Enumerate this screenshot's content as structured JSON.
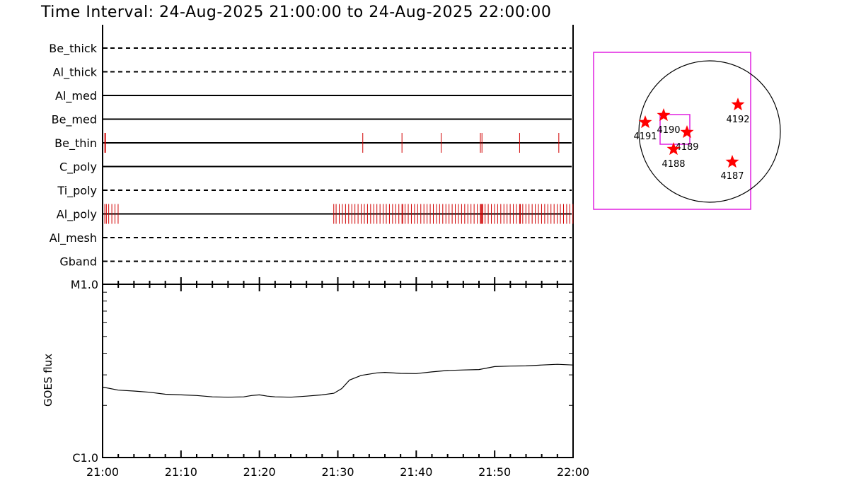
{
  "title": "Time Interval: 24-Aug-2025 21:00:00 to 24-Aug-2025 22:00:00",
  "chart_data": [
    {
      "type": "timeline",
      "x_range_minutes": [
        0,
        60
      ],
      "filters": [
        {
          "name": "Be_thick",
          "style": "dashed",
          "exposures_min": []
        },
        {
          "name": "Al_thick",
          "style": "dashed",
          "exposures_min": []
        },
        {
          "name": "Al_med",
          "style": "solid",
          "exposures_min": []
        },
        {
          "name": "Be_med",
          "style": "solid",
          "exposures_min": []
        },
        {
          "name": "Be_thin",
          "style": "solid",
          "exposures_min": [
            0.1,
            0.2,
            33.0,
            38.0,
            43.0,
            48.0,
            48.2,
            53.0,
            58.0
          ]
        },
        {
          "name": "C_poly",
          "style": "solid",
          "exposures_min": []
        },
        {
          "name": "Ti_poly",
          "style": "dashed",
          "exposures_min": []
        },
        {
          "name": "Al_poly",
          "style": "solid",
          "exposures_min": [
            0.1,
            0.3,
            0.6,
            1.0,
            1.4,
            1.8,
            29.3,
            29.6,
            30.0,
            30.4,
            30.8,
            31.2,
            31.6,
            32.0,
            32.4,
            32.8,
            33.2,
            33.6,
            34.0,
            34.4,
            34.8,
            35.2,
            35.6,
            36.0,
            36.4,
            36.8,
            37.2,
            37.6,
            38.0,
            38.1,
            38.4,
            38.8,
            39.2,
            39.6,
            40.0,
            40.4,
            40.8,
            41.2,
            41.6,
            42.0,
            42.4,
            42.8,
            43.2,
            43.6,
            44.0,
            44.4,
            44.8,
            45.2,
            45.6,
            46.0,
            46.4,
            46.8,
            47.2,
            47.6,
            48.0,
            48.1,
            48.2,
            48.3,
            48.6,
            49.0,
            49.4,
            49.8,
            50.2,
            50.6,
            51.0,
            51.4,
            51.8,
            52.2,
            52.6,
            53.0,
            53.1,
            53.4,
            53.8,
            54.2,
            54.6,
            55.0,
            55.4,
            55.8,
            56.2,
            56.6,
            57.0,
            57.4,
            57.8,
            58.2,
            58.6,
            59.0,
            59.4,
            59.8
          ]
        },
        {
          "name": "Al_mesh",
          "style": "dashed",
          "exposures_min": []
        },
        {
          "name": "Gband",
          "style": "dashed",
          "exposures_min": []
        }
      ],
      "exposure_color": "#d00000"
    },
    {
      "type": "line",
      "ylabel": "GOES flux",
      "yscale": "log",
      "ylim": [
        1e-06,
        1e-05
      ],
      "y_tick_labels": [
        "C1.0",
        "M1.0"
      ],
      "x_tick_labels": [
        "21:00",
        "21:10",
        "21:20",
        "21:30",
        "21:40",
        "21:50",
        "22:00"
      ],
      "x_range_minutes": [
        0,
        60
      ],
      "series": [
        {
          "x_min": [
            0,
            2,
            4,
            6,
            8,
            10,
            12,
            14,
            16,
            18,
            19,
            20,
            21,
            22,
            24,
            26,
            28,
            29.5,
            30.5,
            31.5,
            33,
            35,
            36,
            38,
            40,
            42,
            44,
            46,
            48,
            50,
            52,
            54,
            56,
            58,
            60
          ],
          "y": [
            2.55e-06,
            2.45e-06,
            2.42e-06,
            2.38e-06,
            2.32e-06,
            2.3e-06,
            2.28e-06,
            2.24e-06,
            2.23e-06,
            2.24e-06,
            2.28e-06,
            2.3e-06,
            2.26e-06,
            2.24e-06,
            2.23e-06,
            2.26e-06,
            2.3e-06,
            2.35e-06,
            2.5e-06,
            2.8e-06,
            2.98e-06,
            3.08e-06,
            3.1e-06,
            3.06e-06,
            3.05e-06,
            3.12e-06,
            3.18e-06,
            3.2e-06,
            3.22e-06,
            3.35e-06,
            3.37e-06,
            3.38e-06,
            3.42e-06,
            3.45e-06,
            3.42e-06
          ]
        }
      ]
    }
  ],
  "sun_map": {
    "box_color": "#e020e0",
    "regions": [
      {
        "label": "4191"
      },
      {
        "label": "4190"
      },
      {
        "label": "4189"
      },
      {
        "label": "4188"
      },
      {
        "label": "4192"
      },
      {
        "label": "4187"
      }
    ],
    "star_color": "#ff0000"
  }
}
